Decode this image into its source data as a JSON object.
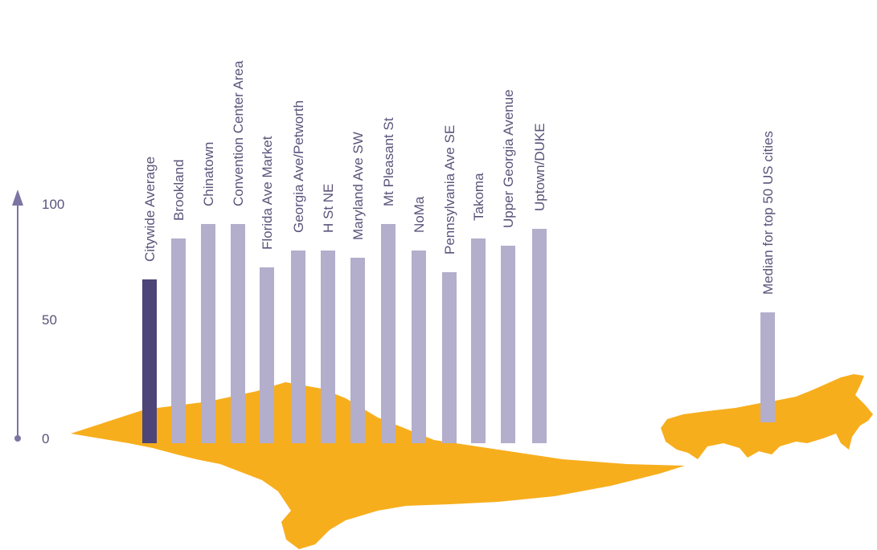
{
  "chart_data": {
    "type": "bar",
    "categories": [
      "Citywide Average",
      "Brookland",
      "Chinatown",
      "Convention Center Area",
      "Florida Ave Market",
      "Georgia Ave/Petworth",
      "H St NE",
      "Maryland Ave SW",
      "Mt Pleasant St",
      "NoMa",
      "Pennsylvania Ave SE",
      "Takoma",
      "Upper Georgia Avenue",
      "Uptown/DUKE",
      "Median for top 50 US cities"
    ],
    "values": [
      68,
      85,
      91,
      91,
      73,
      80,
      80,
      77,
      91,
      80,
      71,
      85,
      82,
      89,
      55
    ],
    "highlight": "Citywide Average",
    "ylim": [
      0,
      100
    ],
    "yticks": [
      "0",
      "50",
      "100"
    ],
    "xlabel": "",
    "ylabel": "",
    "title": "",
    "grid": false
  },
  "colors": {
    "bar": "#b3aecb",
    "highlight_bar": "#4d4478",
    "axis": "#7c74a3",
    "map": "#f7ae1d",
    "text": "#5b537a"
  },
  "icons": {
    "axis_arrow": "up-arrow-icon",
    "dc_map": "washington-dc-map-shape",
    "us_map": "united-states-map-shape"
  }
}
